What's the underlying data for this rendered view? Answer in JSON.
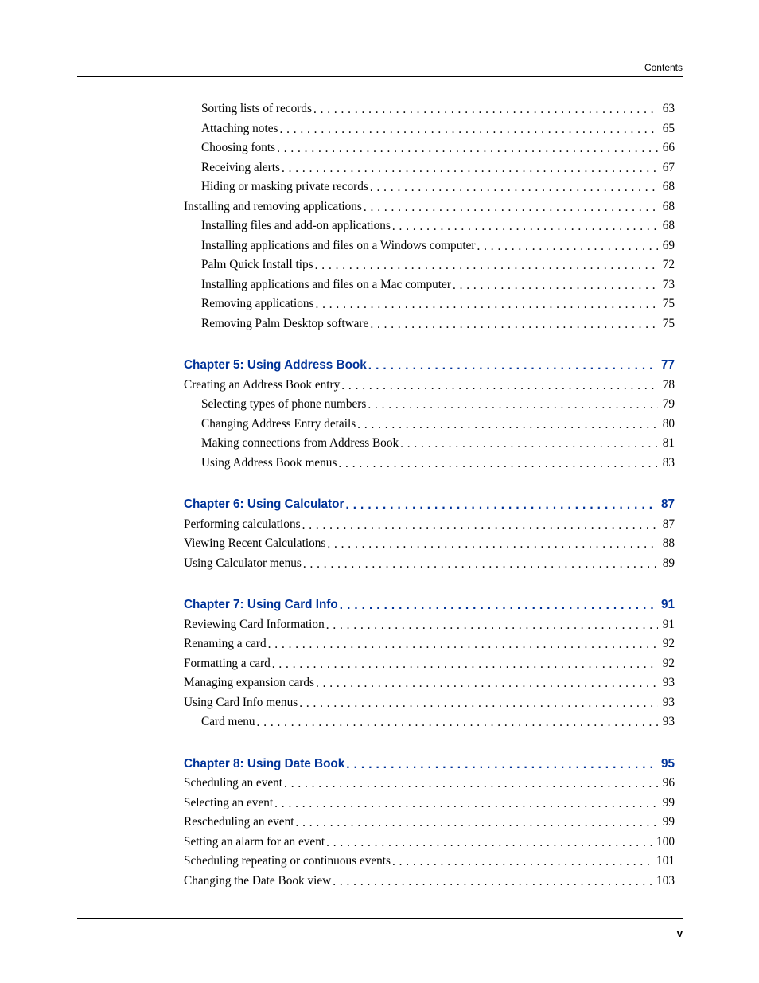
{
  "header_label": "Contents",
  "footer_page": "v",
  "typography": {
    "body_font": "Palatino Linotype",
    "chapter_font": "Arial",
    "body_size_pt": 11.5,
    "chapter_color": "#003399",
    "text_color": "#000000",
    "background_color": "#ffffff"
  },
  "toc": [
    {
      "level": 2,
      "title": "Sorting lists of records",
      "page": "63"
    },
    {
      "level": 2,
      "title": "Attaching notes",
      "page": "65"
    },
    {
      "level": 2,
      "title": "Choosing fonts",
      "page": "66"
    },
    {
      "level": 2,
      "title": "Receiving alerts",
      "page": "67"
    },
    {
      "level": 2,
      "title": "Hiding or masking private records",
      "page": "68"
    },
    {
      "level": 1,
      "title": "Installing and removing applications",
      "page": "68"
    },
    {
      "level": 2,
      "title": "Installing files and add-on applications",
      "page": "68"
    },
    {
      "level": 2,
      "title": "Installing applications and files on a Windows computer",
      "page": "69"
    },
    {
      "level": 2,
      "title": "Palm Quick Install tips",
      "page": "72"
    },
    {
      "level": 2,
      "title": "Installing applications and files on a Mac computer",
      "page": "73"
    },
    {
      "level": 2,
      "title": "Removing applications",
      "page": "75"
    },
    {
      "level": 2,
      "title": "Removing Palm Desktop software",
      "page": "75"
    },
    {
      "gap": true
    },
    {
      "chapter": true,
      "title": "Chapter 5:  Using Address Book",
      "page": "77"
    },
    {
      "level": 1,
      "title": "Creating an Address Book entry",
      "page": "78"
    },
    {
      "level": 2,
      "title": "Selecting types of phone numbers",
      "page": "79"
    },
    {
      "level": 2,
      "title": "Changing Address Entry details",
      "page": "80"
    },
    {
      "level": 2,
      "title": "Making connections from Address Book",
      "page": "81"
    },
    {
      "level": 2,
      "title": "Using Address Book menus",
      "page": "83"
    },
    {
      "gap": true
    },
    {
      "chapter": true,
      "title": "Chapter 6:  Using Calculator",
      "page": "87"
    },
    {
      "level": 1,
      "title": "Performing calculations",
      "page": "87"
    },
    {
      "level": 1,
      "title": "Viewing Recent Calculations",
      "page": "88"
    },
    {
      "level": 1,
      "title": "Using Calculator menus",
      "page": "89"
    },
    {
      "gap": true
    },
    {
      "chapter": true,
      "title": "Chapter 7:  Using Card Info",
      "page": "91"
    },
    {
      "level": 1,
      "title": "Reviewing Card Information",
      "page": "91"
    },
    {
      "level": 1,
      "title": "Renaming a card",
      "page": "92"
    },
    {
      "level": 1,
      "title": "Formatting a card",
      "page": "92"
    },
    {
      "level": 1,
      "title": "Managing expansion cards",
      "page": "93"
    },
    {
      "level": 1,
      "title": "Using Card Info menus",
      "page": "93"
    },
    {
      "level": 2,
      "title": "Card menu",
      "page": "93"
    },
    {
      "gap": true
    },
    {
      "chapter": true,
      "title": "Chapter 8:  Using Date Book",
      "page": "95"
    },
    {
      "level": 1,
      "title": "Scheduling an event",
      "page": "96"
    },
    {
      "level": 1,
      "title": "Selecting an event",
      "page": "99"
    },
    {
      "level": 1,
      "title": "Rescheduling an event",
      "page": "99"
    },
    {
      "level": 1,
      "title": "Setting an alarm for an event",
      "page": "100"
    },
    {
      "level": 1,
      "title": "Scheduling repeating or continuous events",
      "page": "101"
    },
    {
      "level": 1,
      "title": "Changing the Date Book view",
      "page": "103"
    }
  ]
}
